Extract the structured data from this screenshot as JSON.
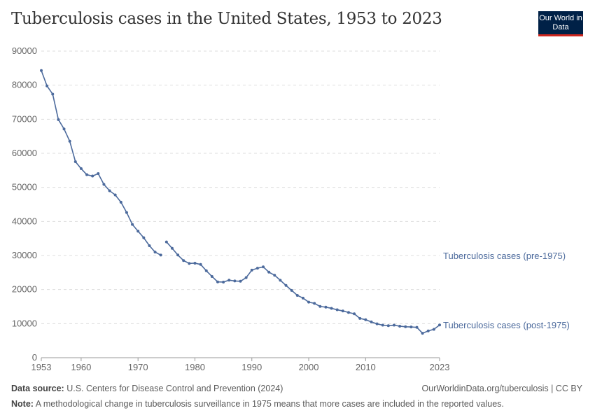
{
  "header": {
    "title": "Tuberculosis cases in the United States, 1953 to 2023",
    "logo_text": "Our World in Data"
  },
  "footer": {
    "source_label": "Data source:",
    "source": "U.S. Centers for Disease Control and Prevention (2024)",
    "url": "OurWorldinData.org/tuberculosis | CC BY",
    "note_label": "Note:",
    "note": "A methodological change in tuberculosis surveillance in 1975 means that more cases are included in the reported values."
  },
  "chart_data": {
    "type": "line",
    "title": "Tuberculosis cases in the United States, 1953 to 2023",
    "xlim": [
      1953,
      2023
    ],
    "ylim": [
      0,
      90000
    ],
    "x_ticks": [
      "1953",
      "1960",
      "1970",
      "1980",
      "1990",
      "2000",
      "2010",
      "2023"
    ],
    "y_ticks": [
      "0",
      "10000",
      "20000",
      "30000",
      "40000",
      "50000",
      "60000",
      "70000",
      "80000",
      "90000"
    ],
    "grid": "horizontal dashed",
    "color": "#4c6a9c",
    "series": [
      {
        "name": "Tuberculosis cases (pre-1975)",
        "x": [
          1953,
          1954,
          1955,
          1956,
          1957,
          1958,
          1959,
          1960,
          1961,
          1962,
          1963,
          1964,
          1965,
          1966,
          1967,
          1968,
          1969,
          1970,
          1971,
          1972,
          1973,
          1974
        ],
        "values": [
          84304,
          79775,
          77368,
          69895,
          67149,
          63534,
          57535,
          55494,
          53726,
          53315,
          54042,
          50874,
          49016,
          47767,
          45647,
          42623,
          39120,
          37137,
          35217,
          32882,
          30998,
          30122
        ]
      },
      {
        "name": "Tuberculosis cases (post-1975)",
        "x": [
          1975,
          1976,
          1977,
          1978,
          1979,
          1980,
          1981,
          1982,
          1983,
          1984,
          1985,
          1986,
          1987,
          1988,
          1989,
          1990,
          1991,
          1992,
          1993,
          1994,
          1995,
          1996,
          1997,
          1998,
          1999,
          2000,
          2001,
          2002,
          2003,
          2004,
          2005,
          2006,
          2007,
          2008,
          2009,
          2010,
          2011,
          2012,
          2013,
          2014,
          2015,
          2016,
          2017,
          2018,
          2019,
          2020,
          2021,
          2022,
          2023
        ],
        "values": [
          33989,
          32105,
          30145,
          28521,
          27669,
          27749,
          27373,
          25520,
          23846,
          22255,
          22201,
          22768,
          22517,
          22436,
          23495,
          25701,
          26283,
          26673,
          25108,
          24206,
          22727,
          21210,
          19751,
          18287,
          17499,
          16309,
          15945,
          15055,
          14835,
          14499,
          14065,
          13727,
          13282,
          12895,
          11520,
          11159,
          10515,
          9930,
          9556,
          9394,
          9547,
          9252,
          9088,
          9021,
          8900,
          7170,
          7866,
          8331,
          9615
        ]
      }
    ]
  }
}
